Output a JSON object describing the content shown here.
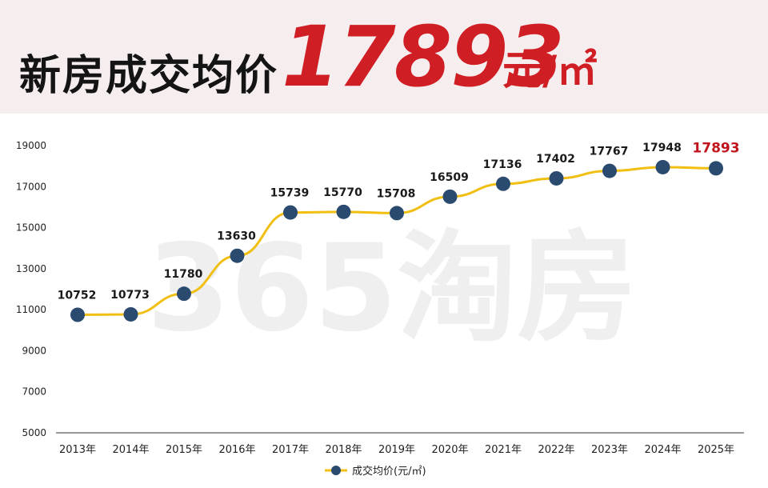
{
  "header": {
    "title": "新房成交均价",
    "value": "17893",
    "unit": "元/㎡"
  },
  "watermark": "365淘房",
  "chart_data": {
    "type": "line",
    "title": "新房成交均价17893元/㎡",
    "categories": [
      "2013年",
      "2014年",
      "2015年",
      "2016年",
      "2017年",
      "2018年",
      "2019年",
      "2020年",
      "2021年",
      "2022年",
      "2023年",
      "2024年",
      "2025年"
    ],
    "series": [
      {
        "name": "成交均价(元/㎡)",
        "values": [
          10752,
          10773,
          11780,
          13630,
          15739,
          15770,
          15708,
          16509,
          17136,
          17402,
          17767,
          17948,
          17893
        ],
        "line_color": "#f0bf12",
        "marker_color": "#2b4a6f",
        "highlight_color": "#c0141c"
      }
    ],
    "yticks": [
      5000,
      7000,
      9000,
      11000,
      13000,
      15000,
      17000,
      19000
    ],
    "ylim": [
      5000,
      19000
    ],
    "grid": false,
    "legend": "bottom-center",
    "highlight_last": true
  }
}
